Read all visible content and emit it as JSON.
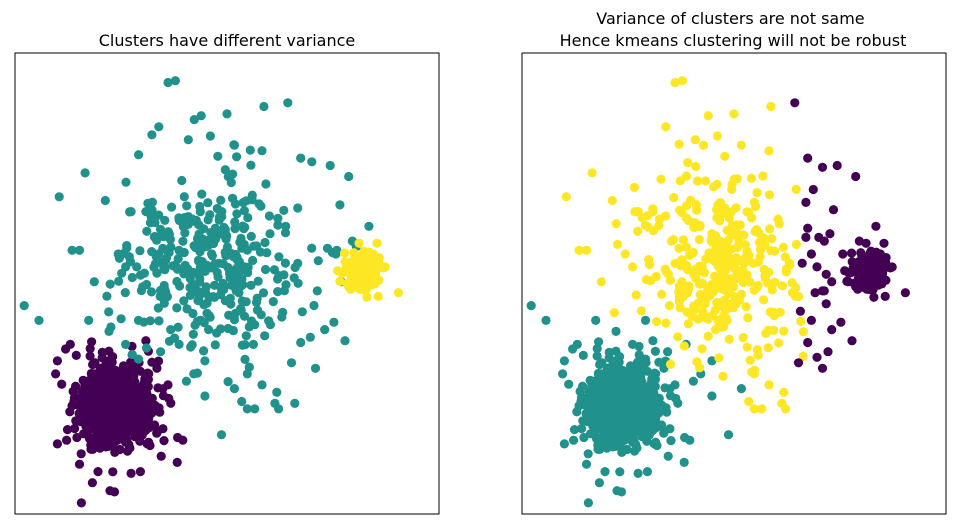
{
  "colors": {
    "purple": "#440154",
    "teal": "#21918c",
    "yellow": "#fde725"
  },
  "chart_data": [
    {
      "type": "scatter",
      "title": "Clusters have different variance",
      "xlabel": "",
      "ylabel": "",
      "ticks": "hidden",
      "grid": false,
      "xlim": [
        -12.5,
        10.5
      ],
      "ylim": [
        -12,
        13
      ],
      "series": [
        {
          "color": "purple",
          "cluster": {
            "center": [
              -7,
              -6.2
            ],
            "spread": [
              1.1,
              1.1
            ],
            "count": 700
          },
          "outliers": [
            [
              -9.5,
              -2.8
            ],
            [
              -10.2,
              -3.7
            ],
            [
              -10.3,
              -4.4
            ],
            [
              -9.0,
              -9.3
            ],
            [
              -8.0,
              -9.7
            ],
            [
              -8.3,
              -10.3
            ],
            [
              -7.1,
              -10.8
            ],
            [
              -8.9,
              -11.4
            ],
            [
              -5.7,
              -9.7
            ],
            [
              -3.7,
              -9.2
            ],
            [
              -3.4,
              -8.0
            ],
            [
              -4.8,
              -4.1
            ],
            [
              -5.4,
              -2.6
            ],
            [
              -10.2,
              -8.2
            ],
            [
              -9.7,
              -8.0
            ],
            [
              -6.2,
              -9.8
            ],
            [
              -4.2,
              -5.0
            ]
          ]
        },
        {
          "color": "teal",
          "points": [
            [
              -4.2,
              11.4
            ],
            [
              -3.8,
              11.5
            ],
            [
              -4.7,
              9.0
            ],
            [
              -3.1,
              8.3
            ],
            [
              -2.4,
              9.6
            ],
            [
              -1.9,
              8.5
            ],
            [
              -1.0,
              9.7
            ],
            [
              -1.5,
              7.4
            ],
            [
              -0.6,
              8.0
            ],
            [
              1.0,
              10.1
            ],
            [
              0.9,
              7.7
            ],
            [
              2.3,
              10.3
            ],
            [
              3.0,
              7.3
            ],
            [
              3.6,
              7.1
            ],
            [
              4.6,
              6.9
            ],
            [
              5.6,
              6.3
            ],
            [
              -8.7,
              6.5
            ],
            [
              -10.1,
              5.2
            ],
            [
              -7.6,
              5.0
            ],
            [
              -6.2,
              4.4
            ],
            [
              -5.4,
              4.4
            ],
            [
              -6.9,
              2.1
            ],
            [
              -6.5,
              1.4
            ],
            [
              -8.2,
              0.6
            ],
            [
              -9.4,
              2.3
            ],
            [
              -9.0,
              2.3
            ],
            [
              -12.0,
              -0.7
            ],
            [
              -11.2,
              -1.5
            ],
            [
              -8.5,
              -1.5
            ],
            [
              -7.4,
              -2.1
            ],
            [
              -6.5,
              -2.8
            ],
            [
              -5.8,
              -1.5
            ],
            [
              -4.6,
              -3.2
            ],
            [
              -5.8,
              -3.6
            ],
            [
              -3.6,
              -2.8
            ],
            [
              -2.2,
              -3.7
            ],
            [
              -2.8,
              -4.4
            ],
            [
              -3.2,
              -4.8
            ],
            [
              -2.2,
              -5.6
            ],
            [
              -0.6,
              -5.2
            ],
            [
              0.9,
              -5.0
            ],
            [
              1.7,
              -5.4
            ],
            [
              -1.3,
              -7.7
            ],
            [
              0.1,
              -4.4
            ],
            [
              -0.2,
              -5.9
            ],
            [
              0.1,
              -6.3
            ],
            [
              0.5,
              -6.3
            ],
            [
              1.6,
              -6.0
            ],
            [
              1.8,
              -6.3
            ],
            [
              2.5,
              -3.8
            ],
            [
              3.8,
              -4.1
            ],
            [
              3.0,
              -2.7
            ],
            [
              4.3,
              -2.0
            ],
            [
              4.8,
              -1.6
            ],
            [
              5.4,
              -2.6
            ],
            [
              5.2,
              0.6
            ],
            [
              5.6,
              1.3
            ],
            [
              4.9,
              2.1
            ],
            [
              5.8,
              2.8
            ],
            [
              6.7,
              3.6
            ],
            [
              3.9,
              0.1
            ],
            [
              -1.8,
              2.0
            ],
            [
              -2.0,
              -2.0
            ],
            [
              0.3,
              0.4
            ]
          ],
          "cluster": {
            "center": [
              -1.7,
              1.5
            ],
            "spread": [
              2.4,
              2.3
            ],
            "count": 360
          }
        },
        {
          "color": "yellow",
          "cluster": {
            "center": [
              6.3,
              1.2
            ],
            "spread": [
              0.45,
              0.55
            ],
            "count": 180
          },
          "outliers": [
            [
              8.3,
              0.0
            ],
            [
              7.2,
              -0.2
            ]
          ]
        }
      ]
    },
    {
      "type": "scatter",
      "title": "Variance of clusters are not same\nHence kmeans clustering will not be robust",
      "xlabel": "",
      "ylabel": "",
      "ticks": "hidden",
      "grid": false,
      "xlim": [
        -12.5,
        10.5
      ],
      "ylim": [
        -12,
        13
      ],
      "series": [
        {
          "color": "teal",
          "cluster": {
            "center": [
              -7,
              -6.2
            ],
            "spread": [
              1.1,
              1.1
            ],
            "count": 700
          },
          "outliers": [
            [
              -9.5,
              -2.8
            ],
            [
              -10.2,
              -3.7
            ],
            [
              -10.3,
              -4.4
            ],
            [
              -9.0,
              -9.3
            ],
            [
              -8.0,
              -9.7
            ],
            [
              -8.3,
              -10.3
            ],
            [
              -7.1,
              -10.8
            ],
            [
              -8.9,
              -11.4
            ],
            [
              -5.7,
              -9.7
            ],
            [
              -3.7,
              -9.2
            ],
            [
              -3.4,
              -8.0
            ],
            [
              -4.8,
              -4.1
            ],
            [
              -5.4,
              -2.6
            ],
            [
              -10.2,
              -8.2
            ],
            [
              -9.7,
              -8.0
            ],
            [
              -6.2,
              -9.8
            ],
            [
              -4.2,
              -5.0
            ],
            [
              -8.5,
              -1.5
            ],
            [
              -7.4,
              -2.1
            ],
            [
              -6.5,
              -2.8
            ],
            [
              -5.8,
              -1.5
            ],
            [
              -4.6,
              -3.2
            ],
            [
              -5.8,
              -3.6
            ],
            [
              -3.6,
              -2.8
            ],
            [
              -2.2,
              -3.7
            ],
            [
              -2.8,
              -4.4
            ],
            [
              -3.2,
              -4.8
            ],
            [
              -2.2,
              -5.6
            ],
            [
              -1.3,
              -7.7
            ],
            [
              -0.6,
              -5.2
            ],
            [
              -12.0,
              -0.7
            ],
            [
              -11.2,
              -1.5
            ]
          ]
        },
        {
          "color": "yellow",
          "points": [
            [
              -4.2,
              11.4
            ],
            [
              -3.8,
              11.5
            ],
            [
              -4.7,
              9.0
            ],
            [
              -3.1,
              8.3
            ],
            [
              -2.4,
              9.6
            ],
            [
              -1.9,
              8.5
            ],
            [
              -1.0,
              9.7
            ],
            [
              -1.5,
              7.4
            ],
            [
              -0.6,
              8.0
            ],
            [
              1.0,
              10.1
            ],
            [
              0.9,
              7.7
            ],
            [
              -8.7,
              6.5
            ],
            [
              -10.1,
              5.2
            ],
            [
              -7.6,
              5.0
            ],
            [
              -6.2,
              4.4
            ],
            [
              -5.4,
              4.4
            ],
            [
              -6.9,
              2.1
            ],
            [
              -6.5,
              1.4
            ],
            [
              -8.2,
              0.6
            ],
            [
              -9.4,
              2.3
            ],
            [
              -9.0,
              2.3
            ],
            [
              0.1,
              -4.4
            ],
            [
              -0.2,
              -5.9
            ],
            [
              0.1,
              -6.3
            ],
            [
              1.6,
              -6.0
            ],
            [
              0.9,
              -5.0
            ],
            [
              1.7,
              -5.4
            ],
            [
              1.8,
              -6.3
            ],
            [
              0.5,
              -6.3
            ],
            [
              -1.8,
              2.0
            ],
            [
              -2.0,
              -2.0
            ],
            [
              0.3,
              0.4
            ]
          ],
          "cluster": {
            "center": [
              -1.9,
              1.5
            ],
            "spread": [
              2.0,
              2.3
            ],
            "count": 330
          },
          "xmax": 2.8
        },
        {
          "color": "purple",
          "cluster": {
            "center": [
              6.3,
              1.2
            ],
            "spread": [
              0.45,
              0.55
            ],
            "count": 180
          },
          "points": [
            [
              3.8,
              6.8
            ],
            [
              2.3,
              10.3
            ],
            [
              3.0,
              7.3
            ],
            [
              4.6,
              6.9
            ],
            [
              5.6,
              6.3
            ],
            [
              2.9,
              4.9
            ],
            [
              3.0,
              3.5
            ],
            [
              3.6,
              3.0
            ],
            [
              4.2,
              3.2
            ],
            [
              3.9,
              2.8
            ],
            [
              3.2,
              2.1
            ],
            [
              3.5,
              1.4
            ],
            [
              4.0,
              1.0
            ],
            [
              4.3,
              0.6
            ],
            [
              3.4,
              0.0
            ],
            [
              3.8,
              0.1
            ],
            [
              4.0,
              -0.6
            ],
            [
              3.2,
              -1.5
            ],
            [
              4.3,
              -2.0
            ],
            [
              4.8,
              -1.6
            ],
            [
              5.4,
              -2.6
            ],
            [
              4.1,
              -3.2
            ],
            [
              3.0,
              -2.7
            ],
            [
              3.8,
              -4.1
            ],
            [
              2.5,
              -3.8
            ],
            [
              8.3,
              0.0
            ],
            [
              7.2,
              -0.2
            ],
            [
              5.2,
              0.6
            ],
            [
              5.6,
              1.3
            ],
            [
              4.9,
              2.1
            ],
            [
              5.8,
              2.8
            ],
            [
              6.7,
              3.6
            ],
            [
              3.9,
              0.1
            ],
            [
              2.7,
              1.6
            ],
            [
              2.6,
              -1.0
            ],
            [
              3.5,
              -3.5
            ],
            [
              2.9,
              3.0
            ],
            [
              4.4,
              4.5
            ],
            [
              3.3,
              5.6
            ]
          ]
        }
      ]
    }
  ]
}
